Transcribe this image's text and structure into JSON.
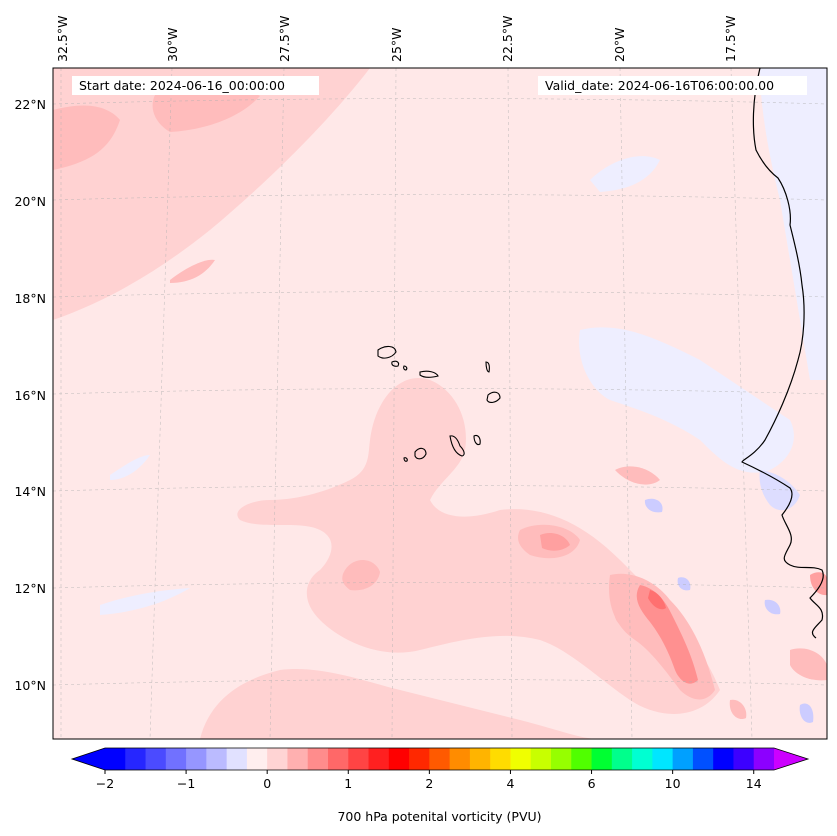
{
  "map": {
    "start_label": "Start date: 2024-06-16_00:00:00",
    "valid_label": "Valid_date: 2024-06-16T06:00:00.00",
    "lon_labels": [
      "32.5°W",
      "30°W",
      "27.5°W",
      "25°W",
      "22.5°W",
      "20°W",
      "17.5°W"
    ],
    "lat_labels": [
      "22°N",
      "20°N",
      "18°N",
      "16°N",
      "14°N",
      "12°N",
      "10°N"
    ],
    "field_name": "700 hPa potenital vorticity (PVU)"
  },
  "colorbar": {
    "tick_labels": [
      "−2",
      "−1",
      "0",
      "1",
      "2",
      "4",
      "6",
      "10",
      "14"
    ],
    "tick_bins": [
      0,
      4,
      8,
      12,
      16,
      20,
      24,
      28,
      32
    ],
    "colors": [
      "#0000ff",
      "#2626ff",
      "#4b4bff",
      "#7171ff",
      "#9696ff",
      "#bbbbff",
      "#e1e1ff",
      "#ffeeee",
      "#ffd4d4",
      "#ffb0b0",
      "#ff8c8c",
      "#ff6868",
      "#ff4444",
      "#ff2020",
      "#ff0000",
      "#ff2800",
      "#ff5a00",
      "#ff8c00",
      "#ffb400",
      "#ffdc00",
      "#f0ff00",
      "#c8ff00",
      "#96ff00",
      "#50ff00",
      "#00ff32",
      "#00ff8c",
      "#00ffd2",
      "#00e6ff",
      "#00a0ff",
      "#0050ff",
      "#0000ff",
      "#3c00ff",
      "#8c00ff"
    ],
    "under_color": "#0000ff",
    "over_color": "#cc00ff"
  }
}
